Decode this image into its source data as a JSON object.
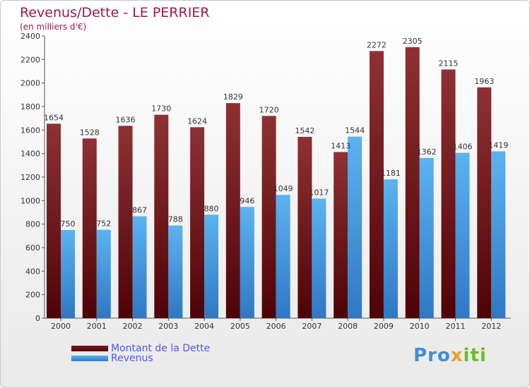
{
  "title": "Revenus/Dette - LE PERRIER",
  "subtitle": "(en milliers d'€)",
  "legend": {
    "dette_label": "Montant de la Dette",
    "revenus_label": "Revenus"
  },
  "logo": {
    "part1": "Pro",
    "part2": "x",
    "part3": "iti"
  },
  "colors": {
    "dette": "#8b2a2e",
    "revenus": "#4aa0e6",
    "title": "#a0174a",
    "legend_text": "#4f59e8"
  },
  "chart_data": {
    "type": "bar",
    "categories": [
      "2000",
      "2001",
      "2002",
      "2003",
      "2004",
      "2005",
      "2006",
      "2007",
      "2008",
      "2009",
      "2010",
      "2011",
      "2012"
    ],
    "series": [
      {
        "name": "Montant de la Dette",
        "values": [
          1654,
          1528,
          1636,
          1730,
          1624,
          1829,
          1720,
          1542,
          1413,
          2272,
          2305,
          2115,
          1963
        ]
      },
      {
        "name": "Revenus",
        "values": [
          750,
          752,
          867,
          788,
          880,
          946,
          1049,
          1017,
          1544,
          1181,
          1362,
          1406,
          1419
        ]
      }
    ],
    "title": "Revenus/Dette - LE PERRIER",
    "ylabel": "",
    "ylim": [
      0,
      2400
    ],
    "yticks": [
      0,
      200,
      400,
      600,
      800,
      1000,
      1200,
      1400,
      1600,
      1800,
      2000,
      2200,
      2400
    ],
    "grid": false,
    "legend_position": "bottom-left"
  }
}
